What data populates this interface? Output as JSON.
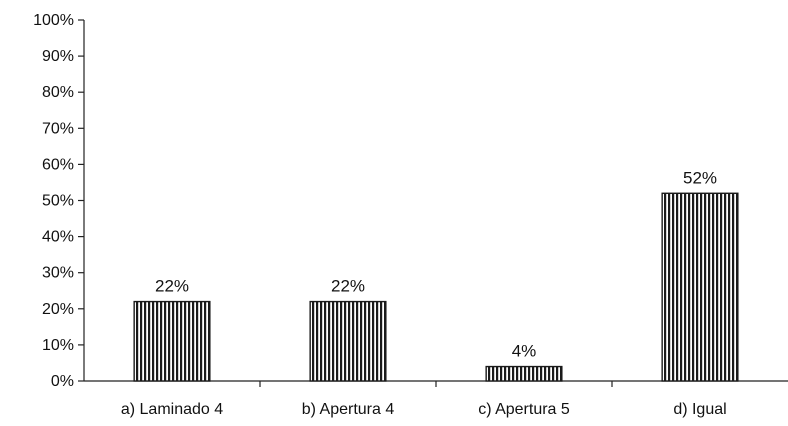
{
  "chart_data": {
    "type": "bar",
    "categories": [
      "a) Laminado 4",
      "b) Apertura 4",
      "c) Apertura 5",
      "d) Igual"
    ],
    "values": [
      22,
      22,
      4,
      52
    ],
    "value_labels": [
      "22%",
      "22%",
      "4%",
      "52%"
    ],
    "y_ticks": [
      "0%",
      "10%",
      "20%",
      "30%",
      "40%",
      "50%",
      "60%",
      "70%",
      "80%",
      "90%",
      "100%"
    ],
    "ylim": [
      0,
      100
    ],
    "title": "",
    "xlabel": "",
    "ylabel": "",
    "grid": false,
    "legend": "none",
    "bar_style": "vertical-hatched",
    "colors": {
      "bar_fill": "#ffffff",
      "bar_hatch": "#1a1a1a",
      "axis": "#222222",
      "text": "#111111"
    }
  }
}
